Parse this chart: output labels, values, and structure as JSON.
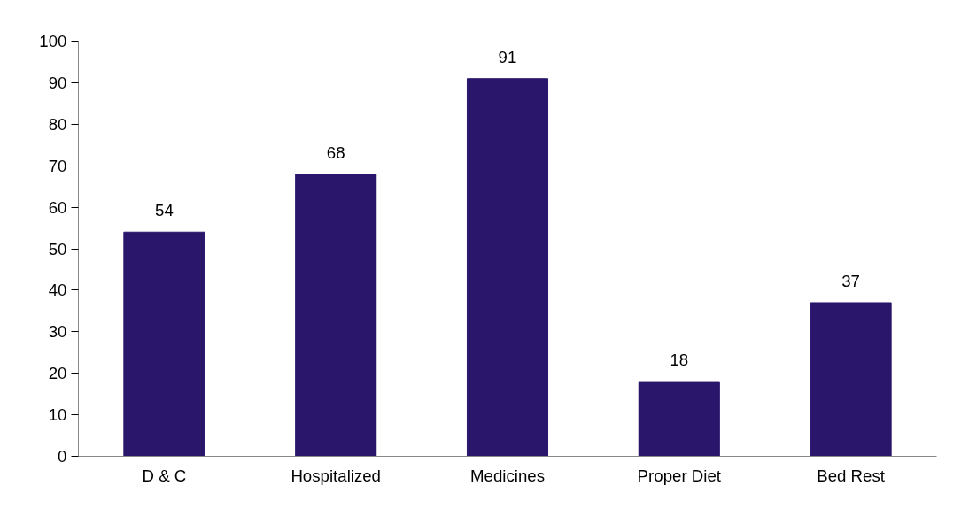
{
  "chart_data": {
    "type": "bar",
    "categories": [
      "D & C",
      "Hospitalized",
      "Medicines",
      "Proper Diet",
      "Bed Rest"
    ],
    "values": [
      54,
      68,
      91,
      18,
      37
    ],
    "color": "#2a166b",
    "ylim": [
      0,
      100
    ],
    "yticks": [
      0,
      10,
      20,
      30,
      40,
      50,
      60,
      70,
      80,
      90,
      100
    ],
    "grid": false,
    "data_labels": true
  }
}
